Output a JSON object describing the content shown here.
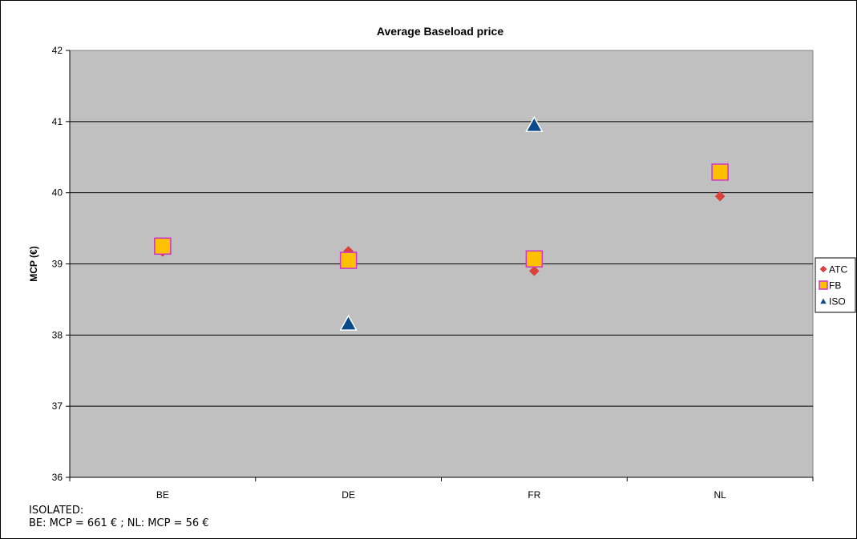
{
  "chart_data": {
    "type": "scatter",
    "title": "Average Baseload price",
    "ylabel": "MCP (€)",
    "xlabel": "",
    "categories": [
      "BE",
      "DE",
      "FR",
      "NL"
    ],
    "ylim": [
      36,
      42
    ],
    "yticks": [
      36,
      37,
      38,
      39,
      40,
      41,
      42
    ],
    "grid": true,
    "legend": "right",
    "series": [
      {
        "name": "ATC",
        "marker": "diamond",
        "color": "#e0403a",
        "values": [
          39.17,
          39.18,
          38.9,
          39.95
        ]
      },
      {
        "name": "FB",
        "marker": "square",
        "color": "#ffc000",
        "edge": "#cc33cc",
        "values": [
          39.25,
          39.05,
          39.07,
          40.29
        ]
      },
      {
        "name": "ISO",
        "marker": "triangle",
        "color": "#0b4a8c",
        "values": [
          null,
          38.16,
          40.95,
          null
        ]
      }
    ],
    "plot_bg": "#c0c0c0"
  },
  "note": {
    "line1": "ISOLATED:",
    "line2": "BE: MCP = 661 € ; NL: MCP = 56 €"
  }
}
